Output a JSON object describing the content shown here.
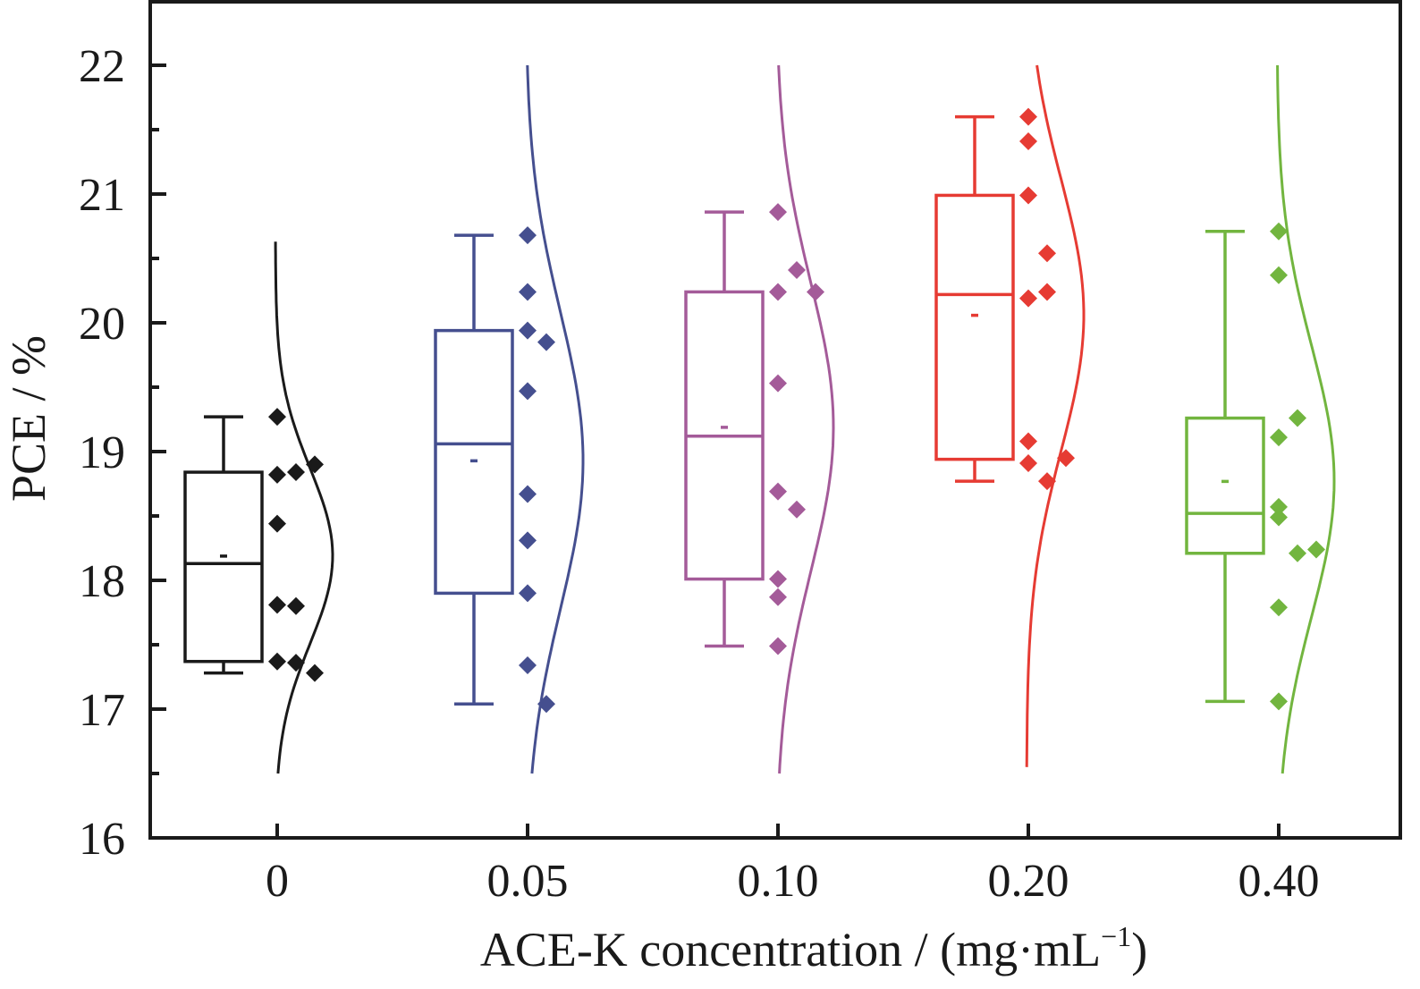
{
  "chart_data": {
    "type": "box",
    "title": "",
    "xlabel": "ACE-K concentration / (mg·mL",
    "xlabel_sup": "−1",
    "xlabel_close": ")",
    "ylabel": "PCE / %",
    "ylim": [
      16,
      22.5
    ],
    "yticks": [
      16,
      17,
      18,
      19,
      20,
      21,
      22
    ],
    "ytick_labels": [
      "16",
      "17",
      "18",
      "19",
      "20",
      "21",
      "22"
    ],
    "yminor_step": 0.5,
    "categories": [
      "0",
      "0.05",
      "0.10",
      "0.20",
      "0.40"
    ],
    "grid": false,
    "legend": "none",
    "series": [
      {
        "name": "0",
        "color": "#1a1a1a",
        "whisker_high": 19.27,
        "q3": 18.84,
        "median": 18.13,
        "mean": 18.19,
        "q1": 17.37,
        "whisker_low": 17.28,
        "points": [
          19.27,
          18.82,
          18.84,
          18.9,
          18.44,
          17.81,
          17.8,
          17.37,
          17.36,
          17.28
        ],
        "point_offsets": [
          0,
          0,
          1,
          2,
          0,
          0,
          1,
          0,
          1,
          2
        ],
        "curve_range": [
          16.5,
          20.63
        ],
        "curve_sd": 0.68
      },
      {
        "name": "0.05",
        "color": "#454f8f",
        "whisker_high": 20.68,
        "q3": 19.94,
        "median": 19.06,
        "mean": 18.93,
        "q1": 17.9,
        "whisker_low": 17.04,
        "points": [
          20.68,
          20.24,
          19.94,
          19.85,
          19.47,
          18.67,
          18.31,
          17.9,
          17.34,
          17.04
        ],
        "point_offsets": [
          0,
          0,
          0,
          1,
          0,
          0,
          0,
          0,
          0,
          1
        ],
        "curve_range": [
          16.5,
          22.0
        ],
        "curve_sd": 1.15
      },
      {
        "name": "0.10",
        "color": "#a45b99",
        "whisker_high": 20.86,
        "q3": 20.24,
        "median": 19.12,
        "mean": 19.19,
        "q1": 18.01,
        "whisker_low": 17.49,
        "points": [
          20.86,
          20.41,
          20.24,
          20.24,
          19.53,
          18.69,
          18.55,
          18.01,
          17.87,
          17.49
        ],
        "point_offsets": [
          0,
          1,
          0,
          2,
          0,
          0,
          1,
          0,
          0,
          0
        ],
        "curve_range": [
          16.5,
          22.0
        ],
        "curve_sd": 1.12
      },
      {
        "name": "0.20",
        "color": "#e63b33",
        "whisker_high": 21.6,
        "q3": 20.99,
        "median": 20.22,
        "mean": 20.06,
        "q1": 18.94,
        "whisker_low": 18.77,
        "points": [
          21.6,
          21.41,
          20.99,
          20.54,
          20.24,
          20.19,
          19.08,
          18.91,
          18.95,
          18.77
        ],
        "point_offsets": [
          0,
          0,
          0,
          1,
          1,
          0,
          0,
          0,
          2,
          1
        ],
        "curve_range": [
          16.55,
          22.0
        ],
        "curve_sd": 1.05
      },
      {
        "name": "0.40",
        "color": "#72b53f",
        "whisker_high": 20.71,
        "q3": 19.26,
        "median": 18.52,
        "mean": 18.77,
        "q1": 18.21,
        "whisker_low": 17.06,
        "points": [
          20.71,
          20.37,
          19.26,
          19.11,
          18.57,
          18.49,
          18.21,
          18.24,
          17.79,
          17.06
        ],
        "point_offsets": [
          0,
          0,
          1,
          0,
          0,
          0,
          1,
          2,
          0,
          0
        ],
        "curve_range": [
          16.5,
          22.0
        ],
        "curve_sd": 1.05
      }
    ]
  }
}
